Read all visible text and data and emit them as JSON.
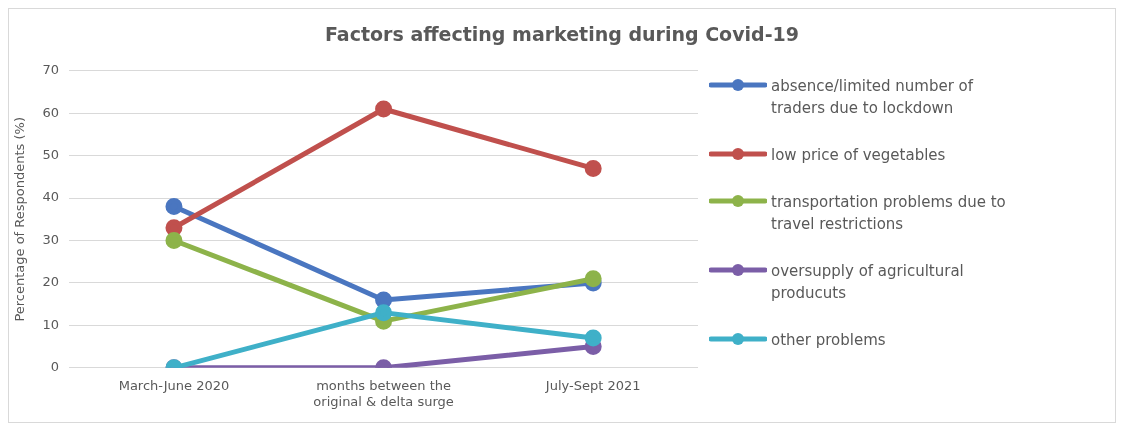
{
  "chart_data": {
    "type": "line",
    "title": "Factors affecting marketing during Covid-19",
    "ylabel": "Percentage of Respondents (%)",
    "categories": [
      "March-June 2020",
      "months between the original & delta surge",
      "July-Sept 2021"
    ],
    "series": [
      {
        "name": "absence/limited number of traders due to lockdown",
        "color": "#4a76c0",
        "values": [
          38,
          16,
          20
        ]
      },
      {
        "name": "low price of vegetables",
        "color": "#c0504d",
        "values": [
          33,
          61,
          47
        ]
      },
      {
        "name": "transportation problems due to travel restrictions",
        "color": "#8db34a",
        "values": [
          30,
          11,
          21
        ]
      },
      {
        "name": "oversupply of agricultural producuts",
        "color": "#7b5ea7",
        "values": [
          0,
          0,
          5
        ]
      },
      {
        "name": "other problems",
        "color": "#3fb0c8",
        "values": [
          0,
          13,
          7
        ]
      }
    ],
    "ylim": [
      0,
      70
    ],
    "yticks": [
      0,
      10,
      20,
      30,
      40,
      50,
      60,
      70
    ],
    "grid": "y",
    "legend": "right",
    "marker": "circle",
    "line_style": "solid"
  }
}
